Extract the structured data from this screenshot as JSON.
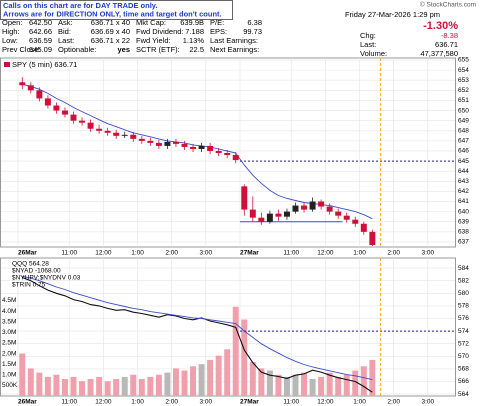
{
  "header": {
    "notice": [
      "Calls on this chart are for DAY TRADE only.",
      "Arrows are for DIRECTION ONLY, time and target don't count."
    ],
    "copyright": "© StockCharts.com",
    "date": "Friday 27-Mar-2026 1:29 pm",
    "pct_change": "-1.30%",
    "columns": [
      [
        {
          "label": "Open:",
          "value": "642.50"
        },
        {
          "label": "High:",
          "value": "642.66"
        },
        {
          "label": "Low:",
          "value": "636.59"
        },
        {
          "label": "Prev Close:",
          "value": "645.09"
        }
      ],
      [
        {
          "label": "Ask:",
          "value": "636.71 x 40"
        },
        {
          "label": "Bid:",
          "value": "636.69 x 40"
        },
        {
          "label": "Last:",
          "value": "636.71 x 22"
        },
        {
          "label": "Optionable:",
          "value": "yes"
        }
      ],
      [
        {
          "label": "Mkt Cap:",
          "value": "639.9B"
        },
        {
          "label": "Fwd Dividend:",
          "value": "7.188"
        },
        {
          "label": "Fwd Yield:",
          "value": "1.13%"
        },
        {
          "label": "SCTR (ETF):",
          "value": "22.5"
        }
      ],
      [
        {
          "label": "P/E:",
          "value": "6.38"
        },
        {
          "label": "EPS:",
          "value": "99.73"
        },
        {
          "label": "Last Earnings:"
        },
        {
          "label": "Next Earnings:"
        }
      ]
    ],
    "right": [
      {
        "label": "Chg:",
        "value": "-8.38"
      },
      {
        "label": "Last:",
        "value": "636.71"
      },
      {
        "label": "Volume:",
        "value": "47,377,580"
      }
    ]
  },
  "chart_data": [
    {
      "type": "candlestick",
      "legend": "SPY (5 min) 636.71",
      "x": [
        "26Mar 09:30",
        "26Mar 09:45",
        "26Mar 10:00",
        "26Mar 10:15",
        "26Mar 10:30",
        "26Mar 10:45",
        "26Mar 11:00",
        "26Mar 11:15",
        "26Mar 11:30",
        "26Mar 11:45",
        "26Mar 12:00",
        "26Mar 12:15",
        "26Mar 12:30",
        "26Mar 12:45",
        "26Mar 13:00",
        "26Mar 13:15",
        "26Mar 13:30",
        "26Mar 13:45",
        "26Mar 14:00",
        "26Mar 14:15",
        "26Mar 14:30",
        "26Mar 14:45",
        "26Mar 15:00",
        "26Mar 15:15",
        "26Mar 15:30",
        "26Mar 15:45",
        "27Mar 09:30",
        "27Mar 09:45",
        "27Mar 10:00",
        "27Mar 10:15",
        "27Mar 10:30",
        "27Mar 10:45",
        "27Mar 11:00",
        "27Mar 11:15",
        "27Mar 11:30",
        "27Mar 11:45",
        "27Mar 12:00",
        "27Mar 12:15",
        "27Mar 12:30",
        "27Mar 12:45",
        "27Mar 13:00",
        "27Mar 13:15"
      ],
      "open": [
        652.8,
        652.5,
        652.0,
        651.2,
        650.5,
        650.0,
        649.6,
        649.0,
        648.8,
        648.2,
        648.0,
        647.8,
        647.5,
        647.6,
        647.2,
        647.0,
        646.8,
        646.5,
        646.9,
        646.7,
        646.4,
        646.2,
        646.5,
        646.0,
        645.8,
        645.6,
        642.5,
        640.2,
        639.4,
        639.0,
        639.8,
        639.5,
        640.0,
        640.6,
        640.2,
        641.0,
        640.5,
        640.0,
        639.6,
        639.2,
        638.8,
        638.0
      ],
      "high": [
        653.3,
        652.8,
        652.3,
        651.5,
        650.8,
        650.3,
        649.9,
        649.3,
        649.1,
        648.6,
        648.3,
        648.1,
        647.9,
        647.9,
        647.5,
        647.3,
        647.1,
        647.2,
        647.2,
        647.0,
        646.7,
        646.8,
        646.8,
        646.3,
        646.1,
        645.9,
        642.7,
        641.5,
        639.9,
        640.1,
        640.2,
        640.3,
        640.9,
        640.9,
        641.4,
        641.2,
        640.8,
        640.3,
        639.9,
        639.5,
        639.0,
        638.2
      ],
      "low": [
        652.1,
        651.7,
        650.9,
        650.2,
        649.7,
        649.3,
        648.7,
        648.5,
        647.9,
        647.7,
        647.5,
        647.2,
        647.3,
        646.9,
        646.7,
        646.5,
        646.2,
        646.2,
        646.4,
        646.1,
        645.9,
        645.9,
        645.7,
        645.5,
        645.3,
        644.8,
        639.6,
        639.0,
        638.7,
        638.8,
        639.1,
        639.2,
        639.8,
        639.9,
        640.0,
        640.2,
        639.7,
        639.3,
        638.9,
        638.5,
        637.7,
        636.6
      ],
      "close": [
        652.5,
        652.0,
        651.2,
        650.5,
        650.0,
        649.6,
        649.0,
        648.8,
        648.2,
        648.0,
        647.8,
        647.5,
        647.6,
        647.2,
        647.0,
        646.8,
        646.5,
        646.9,
        646.7,
        646.4,
        646.2,
        646.5,
        646.0,
        645.8,
        645.6,
        645.1,
        640.2,
        639.4,
        639.0,
        639.8,
        639.5,
        640.0,
        640.6,
        640.2,
        641.0,
        640.5,
        640.0,
        639.6,
        639.2,
        638.8,
        638.0,
        636.7
      ],
      "up_color": "#222222",
      "down_color": "#d0103a",
      "series": [
        {
          "color": "#3a4ccc",
          "values": [
            652.6,
            652.4,
            652.1,
            651.7,
            651.2,
            650.8,
            650.3,
            649.9,
            649.5,
            649.1,
            648.7,
            648.4,
            648.1,
            647.8,
            647.6,
            647.4,
            647.2,
            647.0,
            646.9,
            646.8,
            646.6,
            646.5,
            646.4,
            646.2,
            646.0,
            645.8,
            644.6,
            643.6,
            642.8,
            642.1,
            641.6,
            641.3,
            641.1,
            640.9,
            640.8,
            640.7,
            640.6,
            640.4,
            640.2,
            640.0,
            639.7,
            639.3
          ]
        }
      ],
      "reference_lines": [
        {
          "value": 645,
          "from": "27Mar 09:30",
          "color": "#1a237e",
          "dashed": true
        },
        {
          "value": 639,
          "from": "27Mar 09:30",
          "to": "27Mar 12:30",
          "color": "#3a4ccc",
          "dashed": false
        }
      ],
      "ylim": [
        636.5,
        655.2
      ],
      "yticks": [
        637,
        638,
        639,
        640,
        641,
        642,
        643,
        644,
        645,
        646,
        647,
        648,
        649,
        650,
        651,
        652,
        653,
        654,
        655
      ],
      "xticks": [
        {
          "value": "26Mar 09:30",
          "label": "26Mar"
        },
        {
          "value": "26Mar 11:00",
          "label": "11:00"
        },
        {
          "value": "26Mar 12:00",
          "label": "12:00"
        },
        {
          "value": "26Mar 13:00",
          "label": "1:00"
        },
        {
          "value": "26Mar 14:00",
          "label": "2:00"
        },
        {
          "value": "26Mar 15:00",
          "label": "3:00"
        },
        {
          "value": "27Mar 09:30",
          "label": "27Mar"
        },
        {
          "value": "27Mar 11:00",
          "label": "11:00"
        },
        {
          "value": "27Mar 12:00",
          "label": "12:00"
        },
        {
          "value": "27Mar 13:00",
          "label": "1:00"
        },
        {
          "value": "27Mar 14:00",
          "label": "2:00"
        },
        {
          "value": "27Mar 15:00",
          "label": "3:00"
        }
      ],
      "grid": true
    },
    {
      "type": "line",
      "legend": [
        "QQQ 564.28",
        "$NYAD -1068.00",
        "$NYUPV:$NYDNV 0.03",
        "$TRIN 0.75"
      ],
      "series": [
        {
          "color": "#111111",
          "values": [
            582.5,
            582.0,
            581.2,
            580.5,
            580.0,
            579.6,
            579.0,
            578.7,
            578.2,
            578.0,
            577.6,
            577.3,
            577.4,
            577.0,
            576.8,
            576.5,
            576.2,
            576.6,
            576.4,
            576.0,
            575.8,
            576.1,
            575.6,
            575.3,
            575.0,
            574.6,
            571.0,
            569.0,
            567.5,
            567.0,
            566.8,
            566.5,
            567.0,
            567.2,
            567.8,
            567.5,
            567.0,
            566.6,
            566.3,
            566.0,
            565.2,
            564.3
          ]
        },
        {
          "color": "#3a4ccc",
          "values": [
            582.7,
            582.4,
            582.0,
            581.5,
            581.0,
            580.6,
            580.1,
            579.7,
            579.3,
            578.9,
            578.5,
            578.2,
            577.9,
            577.6,
            577.4,
            577.1,
            576.9,
            576.7,
            576.5,
            576.3,
            576.1,
            576.0,
            575.8,
            575.6,
            575.4,
            575.2,
            574.0,
            573.0,
            572.0,
            571.2,
            570.5,
            569.8,
            569.2,
            568.7,
            568.3,
            568.0,
            567.7,
            567.4,
            567.1,
            566.9,
            566.6,
            566.3
          ]
        },
        {
          "axis": "y2",
          "up_color": "#b8b8b8",
          "down_color": "#f0a0ac",
          "values": [
            2000000,
            1300000,
            1100000,
            900000,
            1000000,
            800000,
            900000,
            700000,
            800000,
            900000,
            700000,
            800000,
            900000,
            1000000,
            800000,
            900000,
            1000000,
            1100000,
            1300000,
            1200000,
            1400000,
            1500000,
            1700000,
            1900000,
            2200000,
            4200000,
            3600000,
            1600000,
            1300000,
            1200000,
            1000000,
            900000,
            1000000,
            1100000,
            800000,
            900000,
            1100000,
            900000,
            1000000,
            1200000,
            1400000,
            1700000
          ]
        }
      ],
      "reference_lines": [
        {
          "value": 574,
          "from": "27Mar 09:30",
          "color": "#1a237e",
          "dashed": true
        }
      ],
      "ylim": [
        563.7,
        585.6
      ],
      "yticks": [
        564,
        566,
        568,
        570,
        572,
        574,
        576,
        578,
        580,
        582,
        584
      ],
      "y2lim": [
        0,
        6500000
      ],
      "y2ticks": [
        {
          "value": 500000,
          "label": "500K"
        },
        {
          "value": 1000000,
          "label": "1.0M"
        },
        {
          "value": 1500000,
          "label": "1.5M"
        },
        {
          "value": 2000000,
          "label": "2.0M"
        },
        {
          "value": 2500000,
          "label": "2.5M"
        },
        {
          "value": 3000000,
          "label": "3.0M"
        },
        {
          "value": 3500000,
          "label": "3.5M"
        },
        {
          "value": 4000000,
          "label": "4.0M"
        },
        {
          "value": 4500000,
          "label": "4.5M"
        }
      ],
      "grid": true
    }
  ]
}
